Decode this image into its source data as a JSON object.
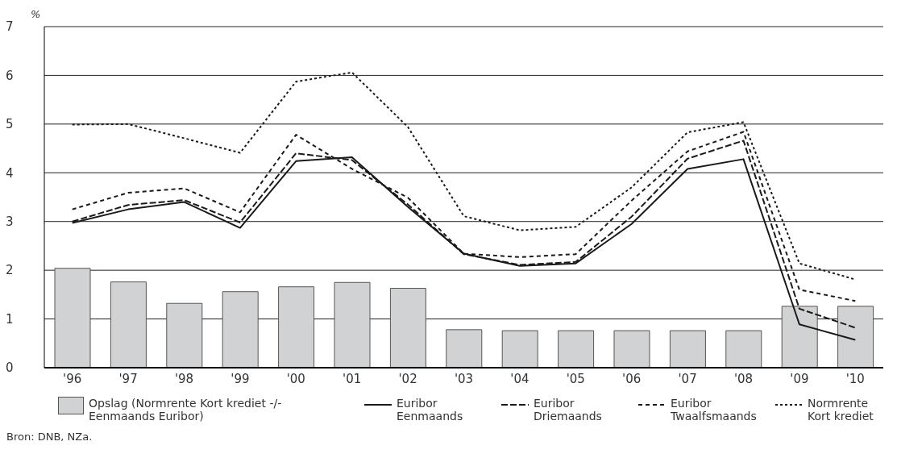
{
  "chart_data": {
    "type": "bar",
    "ylabel": "%",
    "categories": [
      "'96",
      "'97",
      "'98",
      "'99",
      "'00",
      "'01",
      "'02",
      "'03",
      "'04",
      "'05",
      "'06",
      "'07",
      "'08",
      "'09",
      "'10"
    ],
    "series": [
      {
        "name": "Opslag (Normrente Kort krediet -/- Eenmaands Euribor)",
        "color": "#d1d2d4",
        "values": [
          2.04,
          1.76,
          1.32,
          1.56,
          1.66,
          1.75,
          1.63,
          0.78,
          0.76,
          0.76,
          0.76,
          0.76,
          0.76,
          1.26,
          1.26
        ]
      },
      {
        "name": "Euribor Eenmaands",
        "type": "line",
        "line_style": "solid",
        "color": "#1a1a1a",
        "values": [
          2.97,
          3.25,
          3.4,
          2.87,
          4.24,
          4.32,
          3.3,
          2.34,
          2.09,
          2.14,
          2.95,
          4.08,
          4.28,
          0.89,
          0.57
        ]
      },
      {
        "name": "Euribor Driemaands",
        "type": "line",
        "line_style": "dashed",
        "color": "#1a1a1a",
        "values": [
          3.0,
          3.34,
          3.44,
          2.98,
          4.4,
          4.26,
          3.35,
          2.33,
          2.11,
          2.17,
          3.1,
          4.29,
          4.66,
          1.21,
          0.82
        ]
      },
      {
        "name": "Euribor Twaalfsmaands",
        "type": "line",
        "line_style": "dashed",
        "color": "#1a1a1a",
        "values": [
          3.25,
          3.59,
          3.68,
          3.19,
          4.78,
          4.08,
          3.49,
          2.34,
          2.27,
          2.33,
          3.43,
          4.44,
          4.84,
          1.6,
          1.37
        ]
      },
      {
        "name": "Normrente Kort krediet",
        "type": "line",
        "line_style": "dotted",
        "color": "#1a1a1a",
        "values": [
          4.99,
          5.0,
          4.71,
          4.41,
          5.87,
          6.06,
          4.94,
          3.11,
          2.82,
          2.89,
          3.7,
          4.83,
          5.04,
          2.14,
          1.81
        ]
      }
    ],
    "ylim": [
      0,
      7
    ],
    "yticks": [
      0,
      1,
      2,
      3,
      4,
      5,
      6,
      7
    ],
    "grid": "y",
    "legend": "bottom",
    "annotations": [
      "Bron: DNB, NZa."
    ]
  }
}
